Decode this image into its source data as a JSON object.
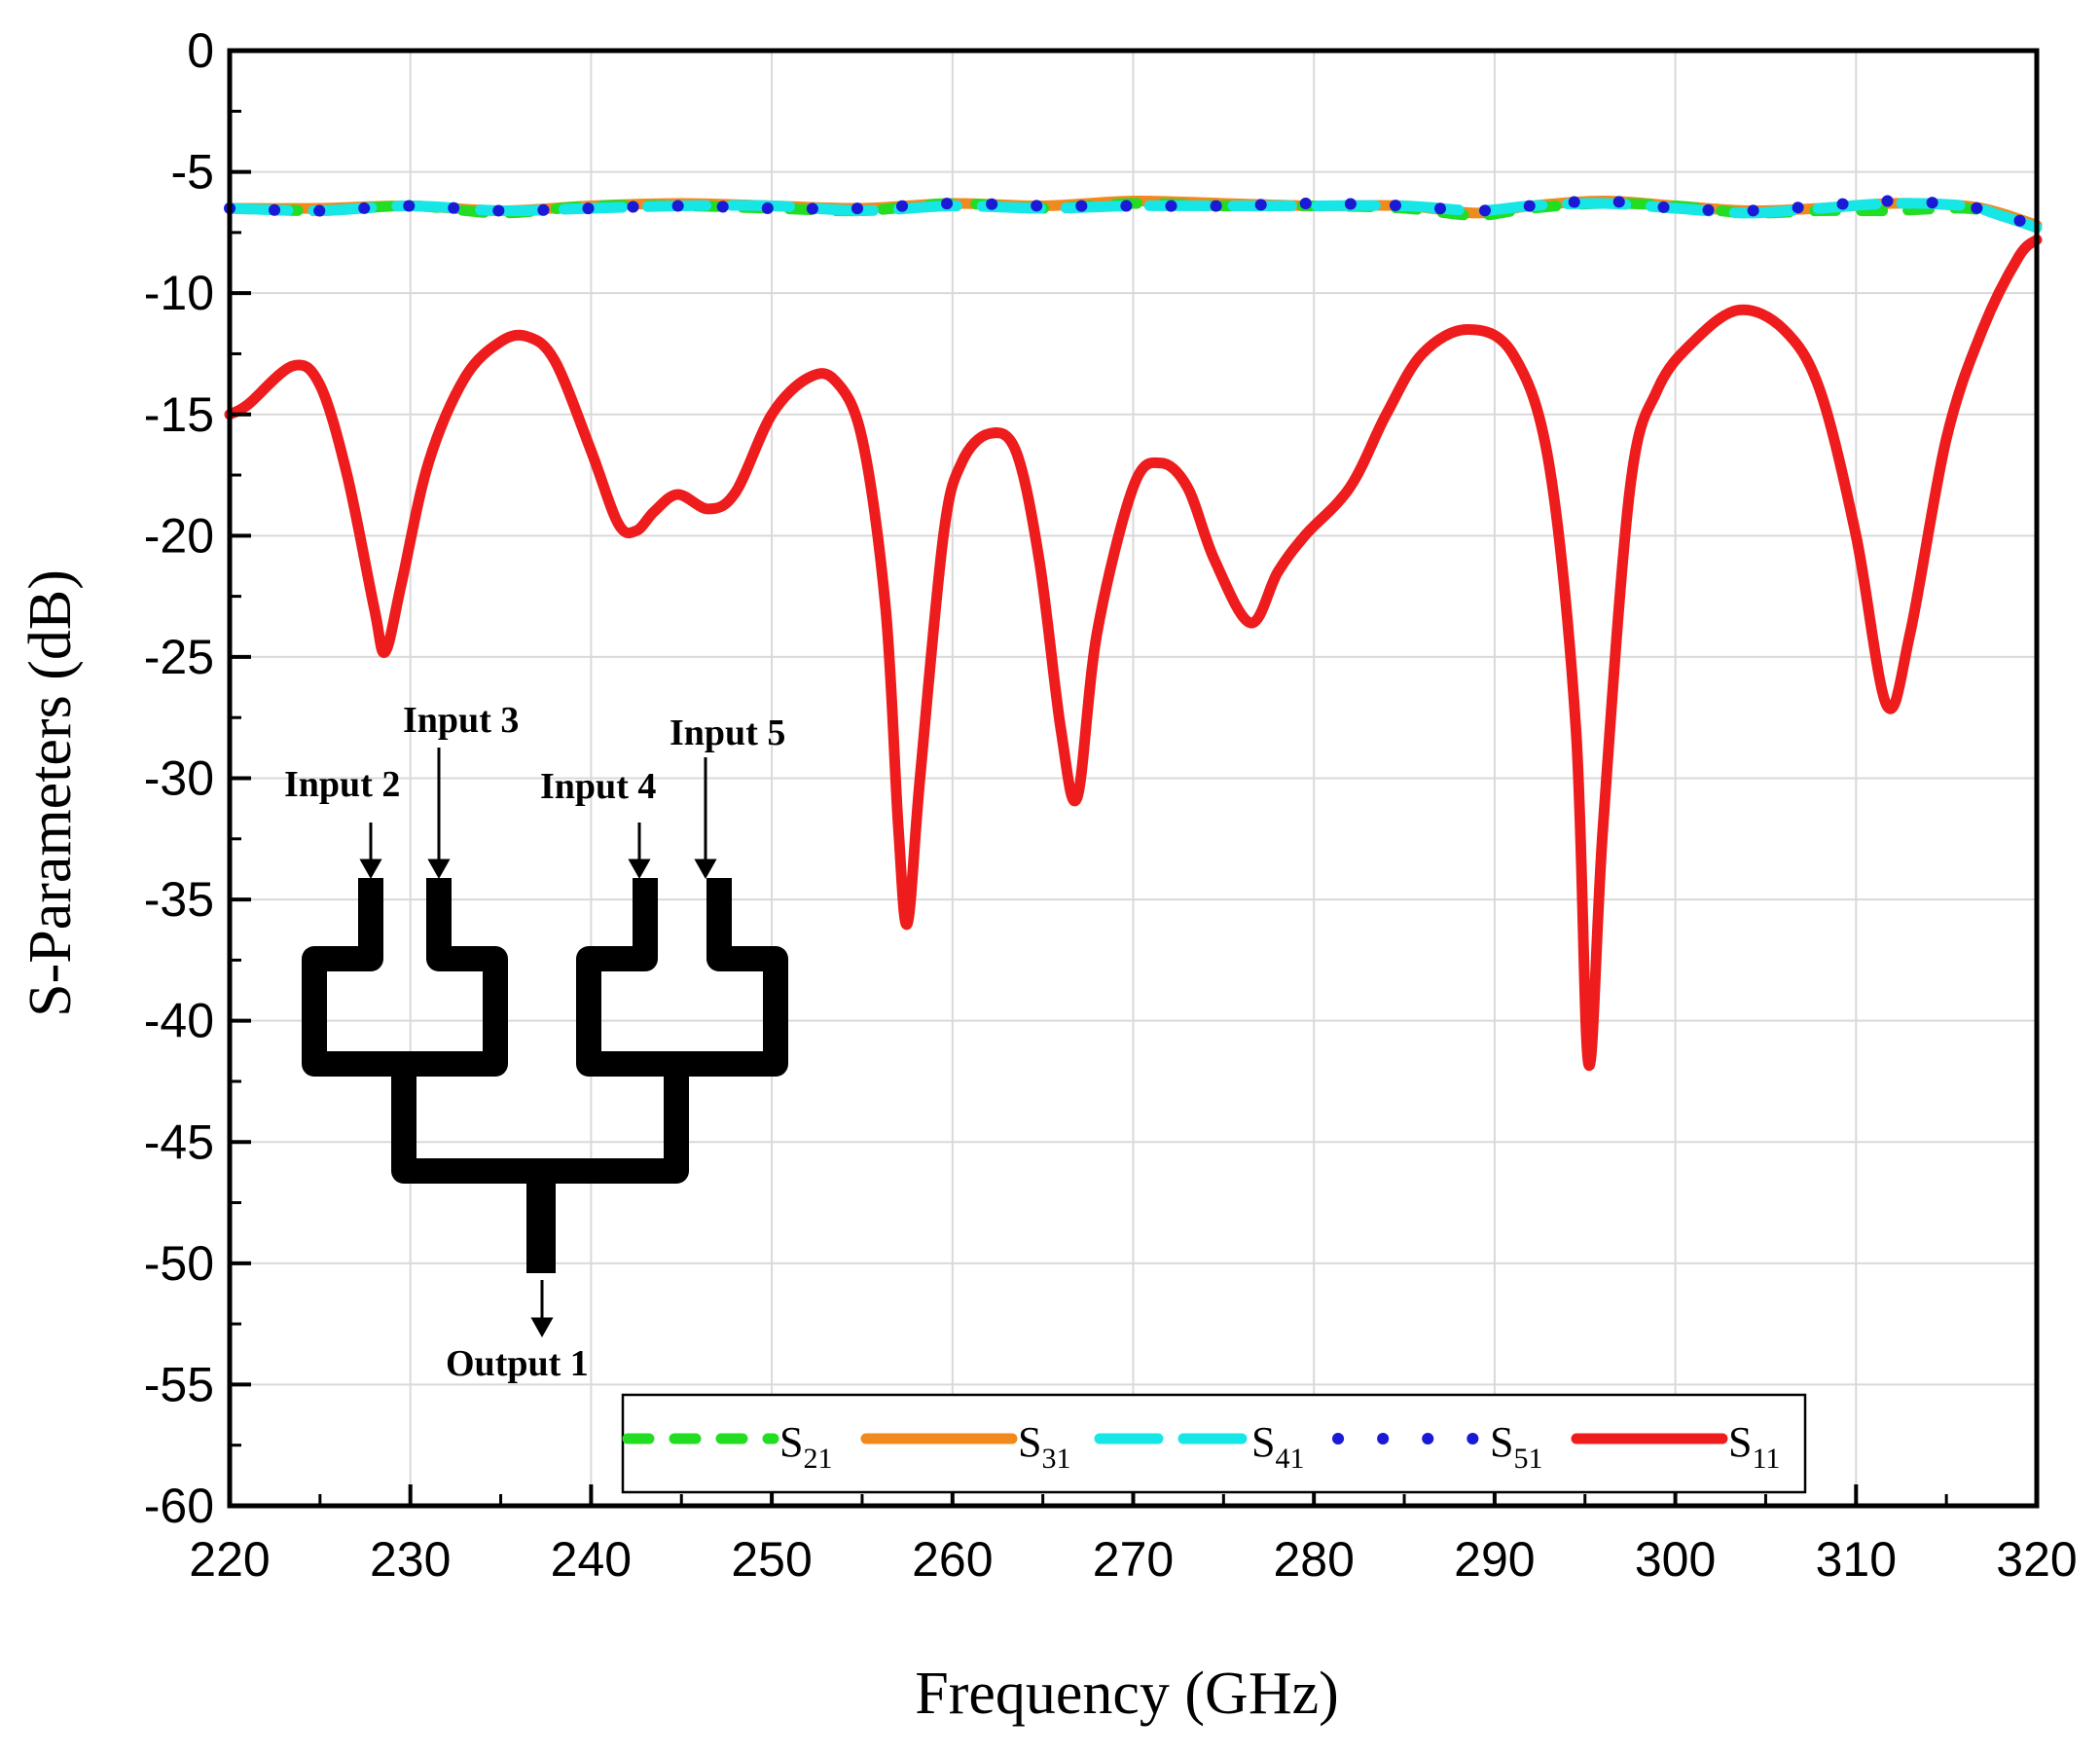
{
  "chart_data": {
    "type": "line",
    "xlabel": "Frequency (GHz)",
    "ylabel": "S-Parameters (dB)",
    "xlim": [
      220,
      320
    ],
    "ylim": [
      -60,
      0
    ],
    "xticks": [
      220,
      230,
      240,
      250,
      260,
      270,
      280,
      290,
      300,
      310,
      320
    ],
    "yticks": [
      0,
      -5,
      -10,
      -15,
      -20,
      -25,
      -30,
      -35,
      -40,
      -45,
      -50,
      -55,
      -60
    ],
    "grid": true,
    "legend_position": "bottom-right",
    "series": [
      {
        "name": "S21",
        "label_main": "S",
        "label_sub": "21",
        "color": "#22dd22",
        "style": "dash",
        "x": [
          220,
          225,
          230,
          235,
          240,
          245,
          250,
          255,
          260,
          265,
          270,
          275,
          280,
          285,
          289,
          292,
          296,
          300,
          304,
          308,
          312,
          316,
          318,
          320
        ],
        "y": [
          -6.5,
          -6.6,
          -6.4,
          -6.7,
          -6.4,
          -6.4,
          -6.5,
          -6.6,
          -6.3,
          -6.5,
          -6.3,
          -6.4,
          -6.4,
          -6.5,
          -6.8,
          -6.5,
          -6.3,
          -6.4,
          -6.7,
          -6.6,
          -6.6,
          -6.5,
          -6.8,
          -7.3
        ]
      },
      {
        "name": "S31",
        "label_main": "S",
        "label_sub": "31",
        "color": "#f08a1e",
        "style": "solid",
        "x": [
          220,
          225,
          230,
          235,
          240,
          245,
          250,
          255,
          260,
          265,
          270,
          275,
          280,
          285,
          289,
          292,
          296,
          300,
          304,
          308,
          312,
          316,
          318,
          320
        ],
        "y": [
          -6.5,
          -6.5,
          -6.4,
          -6.6,
          -6.4,
          -6.3,
          -6.4,
          -6.5,
          -6.3,
          -6.4,
          -6.2,
          -6.3,
          -6.4,
          -6.4,
          -6.7,
          -6.4,
          -6.2,
          -6.4,
          -6.6,
          -6.5,
          -6.3,
          -6.4,
          -6.7,
          -7.2
        ]
      },
      {
        "name": "S41",
        "label_main": "S",
        "label_sub": "41",
        "color": "#17e6e6",
        "style": "longdash",
        "x": [
          220,
          225,
          230,
          235,
          240,
          245,
          250,
          255,
          260,
          265,
          270,
          275,
          280,
          285,
          289,
          292,
          296,
          300,
          304,
          308,
          312,
          316,
          318,
          320
        ],
        "y": [
          -6.5,
          -6.6,
          -6.4,
          -6.6,
          -6.5,
          -6.4,
          -6.4,
          -6.6,
          -6.4,
          -6.5,
          -6.4,
          -6.4,
          -6.4,
          -6.4,
          -6.6,
          -6.4,
          -6.3,
          -6.5,
          -6.7,
          -6.5,
          -6.3,
          -6.4,
          -6.8,
          -7.3
        ]
      },
      {
        "name": "S51",
        "label_main": "S",
        "label_sub": "51",
        "color": "#1a1ad6",
        "style": "dot",
        "x": [
          220,
          225,
          230,
          235,
          240,
          245,
          250,
          255,
          260,
          265,
          270,
          275,
          280,
          285,
          289,
          292,
          296,
          300,
          304,
          308,
          312,
          316,
          318,
          320
        ],
        "y": [
          -6.5,
          -6.6,
          -6.4,
          -6.6,
          -6.5,
          -6.4,
          -6.5,
          -6.5,
          -6.3,
          -6.4,
          -6.4,
          -6.4,
          -6.3,
          -6.4,
          -6.6,
          -6.4,
          -6.2,
          -6.5,
          -6.6,
          -6.4,
          -6.2,
          -6.4,
          -6.8,
          -7.2
        ]
      },
      {
        "name": "S11",
        "label_main": "S",
        "label_sub": "11",
        "color": "#ee1c1c",
        "style": "solid",
        "x": [
          220,
          221,
          223.5,
          225,
          226.5,
          228,
          228.6,
          229.5,
          231,
          233,
          235,
          236.5,
          238,
          240,
          241.5,
          242.5,
          243.5,
          244.8,
          246.5,
          248,
          250,
          252,
          253.5,
          255,
          256.3,
          257,
          257.5,
          258.2,
          259.5,
          260.5,
          262,
          263.5,
          264.8,
          266,
          266.9,
          268,
          270,
          271.5,
          273,
          274.5,
          276.5,
          278,
          279.5,
          282,
          284,
          286,
          288.5,
          291,
          293,
          294.5,
          295.2,
          296,
          297.5,
          299,
          301,
          303.5,
          306,
          308,
          310,
          311.7,
          313,
          315,
          317,
          319,
          320
        ],
        "y": [
          -15,
          -14.6,
          -13,
          -13.8,
          -17.5,
          -23,
          -24.8,
          -22,
          -17,
          -13.5,
          -12,
          -11.8,
          -12.8,
          -16.5,
          -19.5,
          -19.8,
          -19,
          -18.3,
          -18.9,
          -18.2,
          -15,
          -13.5,
          -13.6,
          -16,
          -23,
          -32,
          -36,
          -30,
          -20,
          -17,
          -15.8,
          -16.5,
          -21,
          -28,
          -30.8,
          -24,
          -18,
          -17,
          -18,
          -21,
          -23.6,
          -21.5,
          -20,
          -18,
          -15,
          -12.5,
          -11.5,
          -12.5,
          -17,
          -28,
          -41.8,
          -32,
          -18,
          -14,
          -12,
          -10.7,
          -11.5,
          -14,
          -20,
          -27,
          -24,
          -16,
          -11.5,
          -8.5,
          -7.8
        ]
      }
    ],
    "annotations": [
      "Input 2",
      "Input 3",
      "Input 4",
      "Input 5",
      "Output 1"
    ]
  }
}
